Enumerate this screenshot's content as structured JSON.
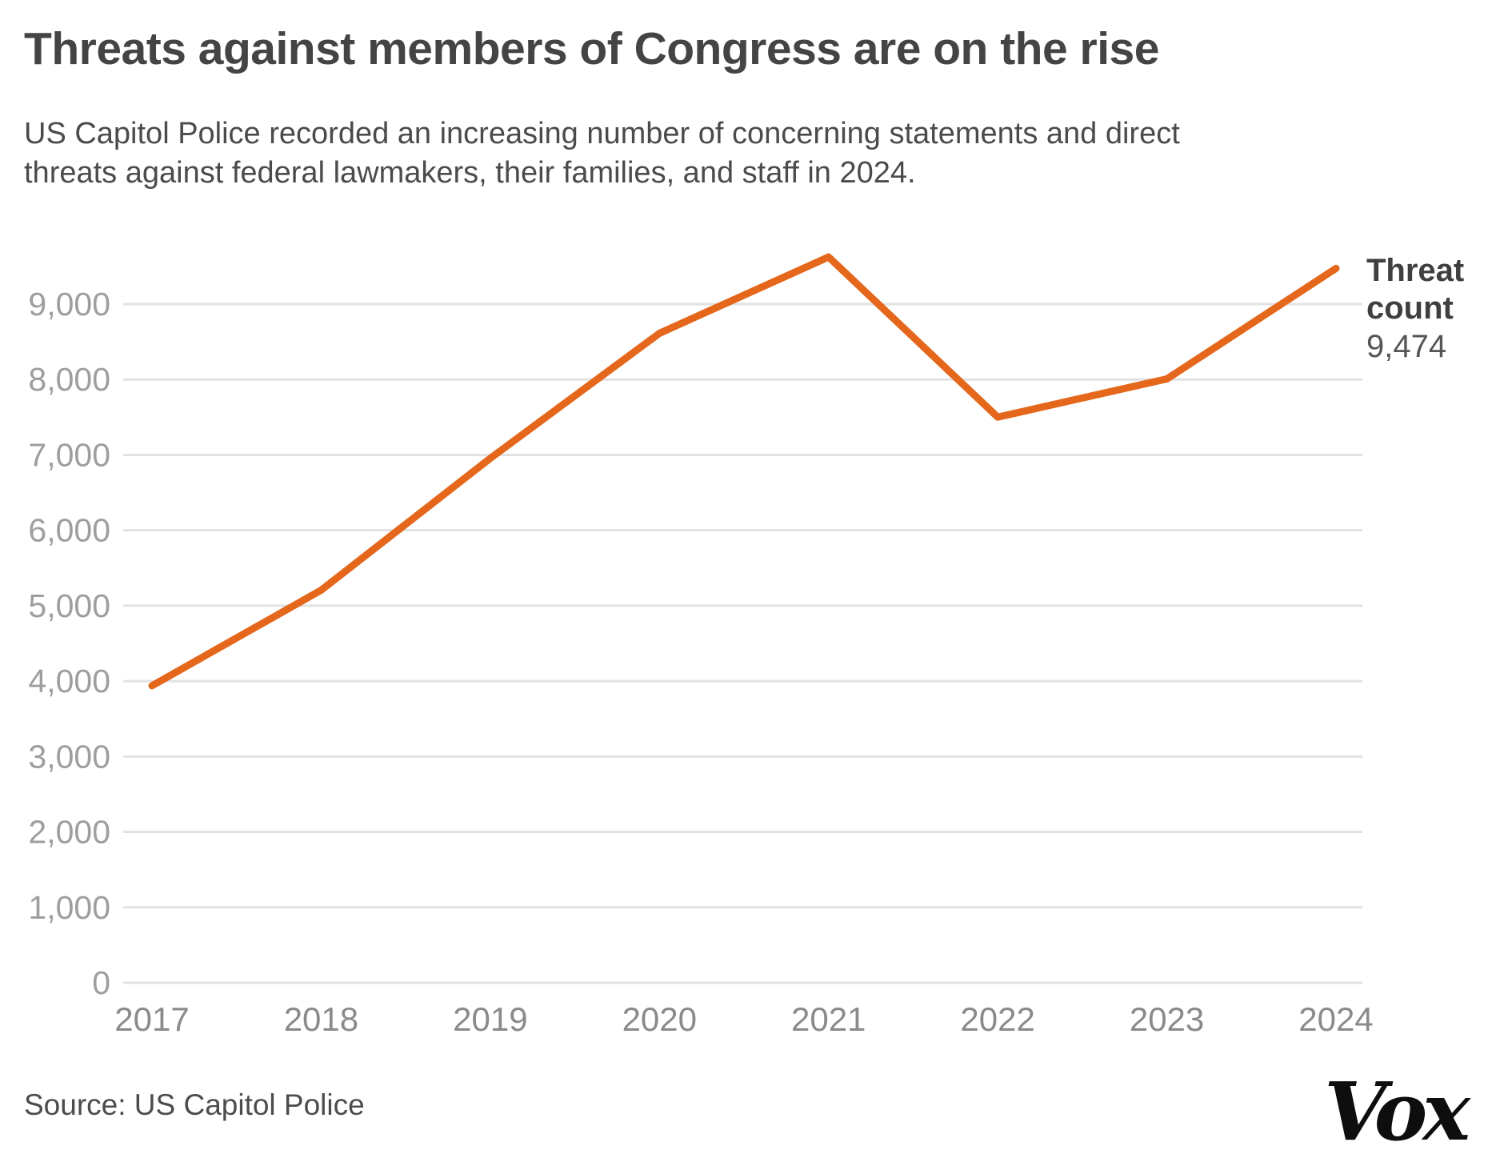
{
  "header": {
    "title": "Threats against members of Congress are on the rise",
    "subtitle_line1": "US Capitol Police recorded an increasing number of concerning statements and direct",
    "subtitle_line2": "threats against federal lawmakers, their families, and staff in 2024."
  },
  "chart_data": {
    "type": "line",
    "title": "Threats against members of Congress are on the rise",
    "categories": [
      "2017",
      "2018",
      "2019",
      "2020",
      "2021",
      "2022",
      "2023",
      "2024"
    ],
    "series": [
      {
        "name": "Threat count",
        "values": [
          3939,
          5206,
          6955,
          8613,
          9625,
          7501,
          8008,
          9474
        ]
      }
    ],
    "xlabel": "",
    "ylabel": "",
    "ylim": [
      0,
      9700
    ],
    "y_tick_values": [
      0,
      1000,
      2000,
      3000,
      4000,
      5000,
      6000,
      7000,
      8000,
      9000
    ],
    "y_tick_labels": [
      "0",
      "1,000",
      "2,000",
      "3,000",
      "4,000",
      "5,000",
      "6,000",
      "7,000",
      "8,000",
      "9,000"
    ],
    "grid": "horizontal gridlines on, light gray",
    "legend_position": "end-of-line annotation, right side",
    "line_color": "#e5671c",
    "gridline_color": "#e2e2e2",
    "y_tick_color": "#9e9e9e",
    "x_tick_color": "#8a8a8a",
    "annotation": {
      "line1": "Threat",
      "line2": "count",
      "value": "9,474"
    }
  },
  "footer": {
    "source": "Source: US Capitol Police",
    "logo_text": "Vox"
  }
}
